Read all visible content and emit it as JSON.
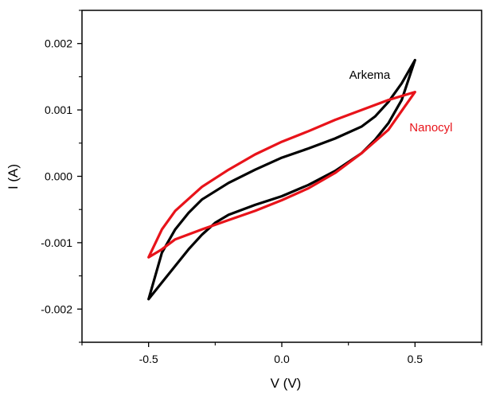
{
  "chart_data": {
    "type": "line",
    "title": "",
    "xlabel": "V (V)",
    "ylabel": "I (A)",
    "xlim": [
      -0.75,
      0.75
    ],
    "ylim": [
      -0.0025,
      0.0025
    ],
    "grid": false,
    "x_ticks": [
      {
        "value": -0.5,
        "label": "-0.5"
      },
      {
        "value": 0.0,
        "label": "0.0"
      },
      {
        "value": 0.5,
        "label": "0.5"
      }
    ],
    "y_ticks": [
      {
        "value": -0.002,
        "label": "-0.002"
      },
      {
        "value": -0.001,
        "label": "-0.001"
      },
      {
        "value": 0.0,
        "label": "0.000"
      },
      {
        "value": 0.001,
        "label": "0.001"
      },
      {
        "value": 0.002,
        "label": "0.002"
      }
    ],
    "series": [
      {
        "name": "Arkema",
        "color": "#000000",
        "x": [
          -0.5,
          -0.45,
          -0.4,
          -0.35,
          -0.3,
          -0.25,
          -0.2,
          -0.1,
          0.0,
          0.1,
          0.2,
          0.3,
          0.35,
          0.4,
          0.45,
          0.5,
          0.45,
          0.4,
          0.35,
          0.3,
          0.2,
          0.1,
          0.0,
          -0.1,
          -0.2,
          -0.3,
          -0.35,
          -0.4,
          -0.45,
          -0.5
        ],
        "y": [
          -0.00185,
          -0.0016,
          -0.00135,
          -0.0011,
          -0.00088,
          -0.0007,
          -0.00058,
          -0.00043,
          -0.0003,
          -0.00013,
          8e-05,
          0.00035,
          0.00055,
          0.0008,
          0.00115,
          0.00175,
          0.0014,
          0.00112,
          0.0009,
          0.00075,
          0.00057,
          0.00042,
          0.00028,
          0.0001,
          -0.0001,
          -0.00035,
          -0.00055,
          -0.0008,
          -0.00115,
          -0.00185
        ]
      },
      {
        "name": "Nanocyl",
        "color": "#e8131a",
        "x": [
          -0.5,
          -0.45,
          -0.4,
          -0.3,
          -0.2,
          -0.1,
          0.0,
          0.1,
          0.2,
          0.3,
          0.4,
          0.5,
          0.4,
          0.3,
          0.2,
          0.1,
          0.0,
          -0.1,
          -0.2,
          -0.3,
          -0.4,
          -0.45,
          -0.5
        ],
        "y": [
          -0.00122,
          -0.0011,
          -0.00095,
          -0.0008,
          -0.00066,
          -0.00052,
          -0.00036,
          -0.00018,
          5e-05,
          0.00035,
          0.0007,
          0.00127,
          0.00115,
          0.001,
          0.00085,
          0.00068,
          0.00052,
          0.00033,
          0.0001,
          -0.00016,
          -0.00052,
          -0.0008,
          -0.00122
        ]
      }
    ],
    "annotations": [
      {
        "text": "Arkema",
        "color": "#000000",
        "x": 0.33,
        "y": 0.00147
      },
      {
        "text": "Nanocyl",
        "color": "#e8131a",
        "x": 0.56,
        "y": 0.00068
      }
    ]
  }
}
